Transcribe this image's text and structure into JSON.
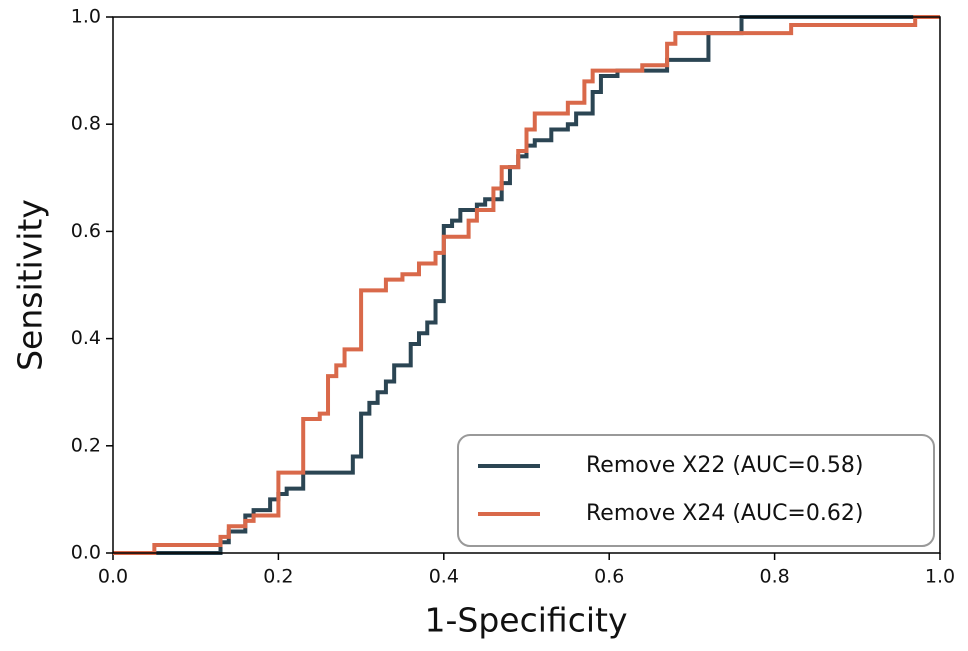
{
  "chart_data": {
    "type": "line",
    "xlabel": "1-Specificity",
    "ylabel": "Sensitivity",
    "xlim": [
      0,
      1
    ],
    "ylim": [
      0,
      1
    ],
    "xticks": [
      {
        "value": 0,
        "label": "0.0"
      },
      0.2,
      0.4,
      0.6,
      0.8,
      {
        "value": 1,
        "label": "1.0"
      }
    ],
    "yticks": [
      {
        "value": 0,
        "label": "0.0"
      },
      0.2,
      0.4,
      0.6,
      0.8,
      {
        "value": 1,
        "label": "1.0"
      }
    ],
    "grid": false,
    "legend": "lower right",
    "series": [
      {
        "name": "Remove X22 (AUC=0.58)",
        "color": "#2b4553",
        "x": [
          0,
          0.13,
          0.13,
          0.14,
          0.14,
          0.16,
          0.16,
          0.17,
          0.17,
          0.19,
          0.19,
          0.2,
          0.2,
          0.21,
          0.21,
          0.23,
          0.23,
          0.29,
          0.29,
          0.3,
          0.3,
          0.31,
          0.31,
          0.32,
          0.32,
          0.33,
          0.33,
          0.34,
          0.34,
          0.36,
          0.36,
          0.37,
          0.37,
          0.38,
          0.38,
          0.39,
          0.39,
          0.4,
          0.4,
          0.41,
          0.41,
          0.42,
          0.42,
          0.44,
          0.44,
          0.45,
          0.45,
          0.47,
          0.47,
          0.48,
          0.48,
          0.49,
          0.49,
          0.5,
          0.5,
          0.51,
          0.51,
          0.53,
          0.53,
          0.55,
          0.55,
          0.56,
          0.56,
          0.58,
          0.58,
          0.59,
          0.59,
          0.61,
          0.61,
          0.67,
          0.67,
          0.72,
          0.72,
          0.76,
          0.76,
          1
        ],
        "values": [
          0,
          0,
          0.02,
          0.02,
          0.04,
          0.04,
          0.07,
          0.07,
          0.08,
          0.08,
          0.1,
          0.1,
          0.11,
          0.11,
          0.12,
          0.12,
          0.15,
          0.15,
          0.18,
          0.18,
          0.26,
          0.26,
          0.28,
          0.28,
          0.3,
          0.3,
          0.32,
          0.32,
          0.35,
          0.35,
          0.39,
          0.39,
          0.41,
          0.41,
          0.43,
          0.43,
          0.47,
          0.47,
          0.61,
          0.61,
          0.62,
          0.62,
          0.64,
          0.64,
          0.65,
          0.65,
          0.66,
          0.66,
          0.69,
          0.69,
          0.72,
          0.72,
          0.74,
          0.74,
          0.76,
          0.76,
          0.77,
          0.77,
          0.79,
          0.79,
          0.8,
          0.8,
          0.82,
          0.82,
          0.86,
          0.86,
          0.89,
          0.89,
          0.9,
          0.9,
          0.92,
          0.92,
          0.97,
          0.97,
          1,
          1
        ]
      },
      {
        "name": "Remove X24 (AUC=0.62)",
        "color": "#d9694a",
        "x": [
          0,
          0.05,
          0.05,
          0.13,
          0.13,
          0.14,
          0.14,
          0.16,
          0.16,
          0.17,
          0.17,
          0.2,
          0.2,
          0.23,
          0.23,
          0.25,
          0.25,
          0.26,
          0.26,
          0.27,
          0.27,
          0.28,
          0.28,
          0.3,
          0.3,
          0.33,
          0.33,
          0.35,
          0.35,
          0.37,
          0.37,
          0.39,
          0.39,
          0.4,
          0.4,
          0.43,
          0.43,
          0.44,
          0.44,
          0.46,
          0.46,
          0.47,
          0.47,
          0.49,
          0.49,
          0.5,
          0.5,
          0.51,
          0.51,
          0.55,
          0.55,
          0.57,
          0.57,
          0.58,
          0.58,
          0.64,
          0.64,
          0.67,
          0.67,
          0.68,
          0.68,
          0.82,
          0.82,
          0.97,
          0.97,
          1
        ],
        "values": [
          0,
          0,
          0.015,
          0.015,
          0.03,
          0.03,
          0.05,
          0.05,
          0.06,
          0.06,
          0.07,
          0.07,
          0.15,
          0.15,
          0.25,
          0.25,
          0.26,
          0.26,
          0.33,
          0.33,
          0.35,
          0.35,
          0.38,
          0.38,
          0.49,
          0.49,
          0.51,
          0.51,
          0.52,
          0.52,
          0.54,
          0.54,
          0.56,
          0.56,
          0.59,
          0.59,
          0.62,
          0.62,
          0.64,
          0.64,
          0.68,
          0.68,
          0.72,
          0.72,
          0.75,
          0.75,
          0.79,
          0.79,
          0.82,
          0.82,
          0.84,
          0.84,
          0.88,
          0.88,
          0.9,
          0.9,
          0.91,
          0.91,
          0.95,
          0.95,
          0.97,
          0.97,
          0.985,
          0.985,
          1,
          1
        ]
      }
    ]
  }
}
